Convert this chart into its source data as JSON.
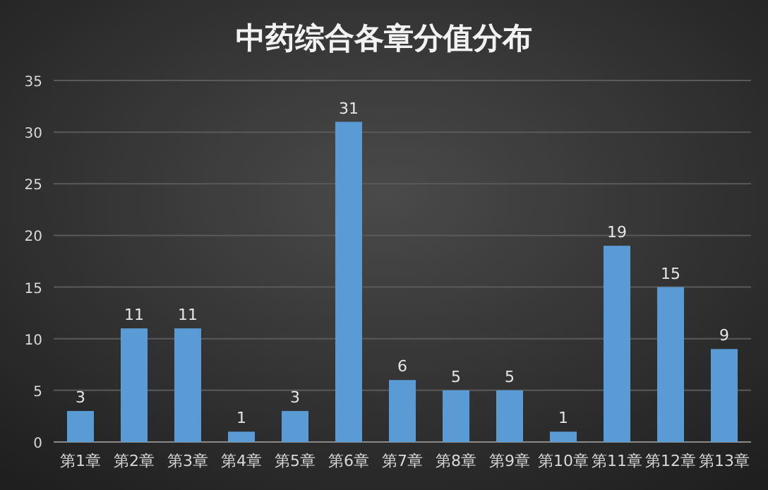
{
  "chart_data": {
    "type": "bar",
    "title": "中药综合各章分值分布",
    "categories": [
      "第1章",
      "第2章",
      "第3章",
      "第4章",
      "第5章",
      "第6章",
      "第7章",
      "第8章",
      "第9章",
      "第10章",
      "第11章",
      "第12章",
      "第13章"
    ],
    "values": [
      3,
      11,
      11,
      1,
      3,
      31,
      6,
      5,
      5,
      1,
      19,
      15,
      9
    ],
    "color": "#5b9bd5",
    "ylim": [
      0,
      35
    ],
    "yticks": [
      0,
      5,
      10,
      15,
      20,
      25,
      30,
      35
    ],
    "grid": "y",
    "data_labels": true
  }
}
